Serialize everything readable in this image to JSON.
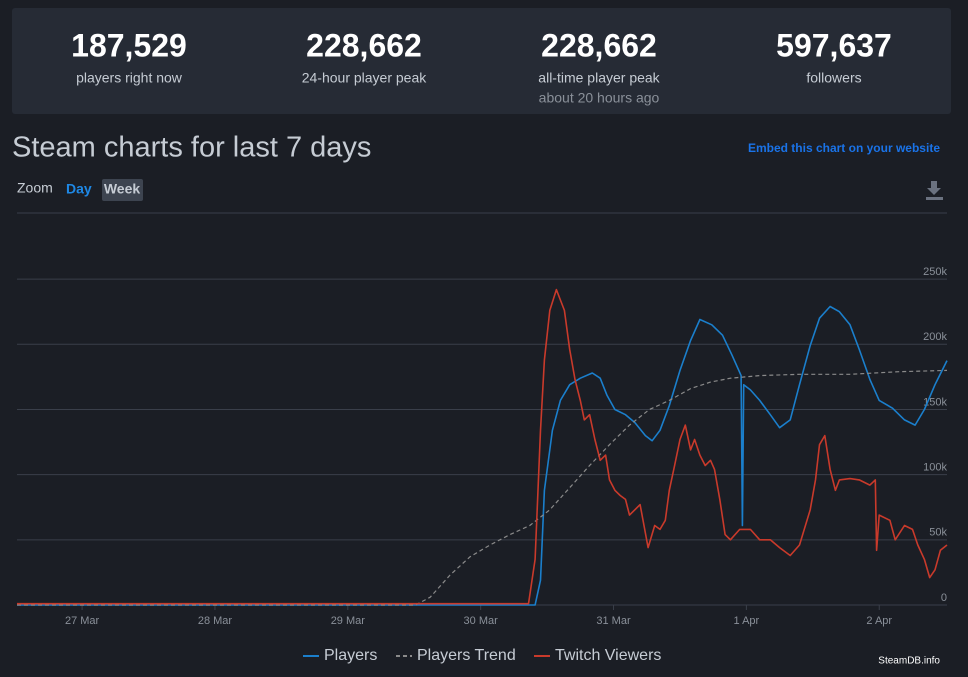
{
  "stats": [
    {
      "value": "187,529",
      "label": "players right now"
    },
    {
      "value": "228,662",
      "label": "24-hour player peak"
    },
    {
      "value": "228,662",
      "label": "all-time player peak",
      "note": "about 20 hours ago"
    },
    {
      "value": "597,637",
      "label": "followers"
    }
  ],
  "chart_data": {
    "type": "line",
    "title": "Steam charts for last 7 days",
    "embed_link": "Embed this chart on your website",
    "zoom_label": "Zoom",
    "zoom_options": [
      "Day",
      "Week"
    ],
    "credit": "SteamDB.info",
    "xlim": [
      26.51,
      33.51
    ],
    "xticks": [
      {
        "value": 27,
        "label": "27 Mar"
      },
      {
        "value": 28,
        "label": "28 Mar"
      },
      {
        "value": 29,
        "label": "29 Mar"
      },
      {
        "value": 30,
        "label": "30 Mar"
      },
      {
        "value": 31,
        "label": "31 Mar"
      },
      {
        "value": 32,
        "label": "1 Apr"
      },
      {
        "value": 33,
        "label": "2 Apr"
      }
    ],
    "ylim": [
      0,
      290000
    ],
    "yticks": [
      0,
      {
        "value": 50000,
        "label": "50k"
      },
      {
        "value": 100000,
        "label": "100k"
      },
      {
        "value": 150000,
        "label": "150k"
      },
      {
        "value": 200000,
        "label": "200k"
      },
      {
        "value": 250000,
        "label": "250k"
      }
    ],
    "grid": true,
    "series": [
      {
        "name": "Players",
        "color": "#1b7fcc",
        "line_style": "solid",
        "x": [
          26.51,
          30.41,
          30.45,
          30.48,
          30.54,
          30.6,
          30.67,
          30.75,
          30.84,
          30.9,
          30.95,
          31.01,
          31.09,
          31.16,
          31.24,
          31.29,
          31.35,
          31.42,
          31.5,
          31.58,
          31.65,
          31.74,
          31.82,
          31.89,
          31.96,
          31.97,
          31.98,
          32.03,
          32.1,
          32.18,
          32.25,
          32.33,
          32.4,
          32.48,
          32.55,
          32.63,
          32.7,
          32.78,
          32.85,
          32.93,
          33.0,
          33.1,
          33.19,
          33.27,
          33.34,
          33.42,
          33.51
        ],
        "values": [
          0,
          0,
          19000,
          88000,
          134000,
          157000,
          169000,
          174000,
          178000,
          174000,
          161000,
          150000,
          146000,
          140000,
          130000,
          126000,
          134000,
          153000,
          180000,
          203000,
          219000,
          215000,
          207000,
          192000,
          176000,
          61000,
          169000,
          165000,
          157000,
          146000,
          136000,
          142000,
          169000,
          199000,
          220000,
          229000,
          225000,
          215000,
          196000,
          173000,
          157000,
          151000,
          142000,
          138000,
          150000,
          169000,
          187529
        ]
      },
      {
        "name": "Players Trend",
        "color": "#8a8a8a",
        "line_style": "dashed",
        "x": [
          26.51,
          29.51,
          29.62,
          29.77,
          29.92,
          30.07,
          30.22,
          30.37,
          30.52,
          30.67,
          30.82,
          30.97,
          31.12,
          31.27,
          31.42,
          31.58,
          31.73,
          31.88,
          32.1,
          32.4,
          32.78,
          33.15,
          33.51
        ],
        "values": [
          0,
          0,
          6000,
          23000,
          37000,
          46000,
          54000,
          61000,
          73000,
          90000,
          107000,
          123000,
          138000,
          150000,
          157000,
          166000,
          171000,
          174000,
          176000,
          177000,
          177000,
          179000,
          180000
        ]
      },
      {
        "name": "Twitch Viewers",
        "color": "#c93a2b",
        "line_style": "solid",
        "x": [
          26.51,
          30.36,
          30.41,
          30.45,
          30.48,
          30.52,
          30.57,
          30.6,
          30.63,
          30.67,
          30.71,
          30.75,
          30.78,
          30.82,
          30.86,
          30.9,
          30.94,
          30.97,
          31.01,
          31.05,
          31.09,
          31.12,
          31.2,
          31.26,
          31.31,
          31.35,
          31.39,
          31.42,
          31.46,
          31.5,
          31.54,
          31.58,
          31.61,
          31.65,
          31.69,
          31.73,
          31.76,
          31.8,
          31.84,
          31.88,
          31.95,
          32.03,
          32.1,
          32.18,
          32.25,
          32.33,
          32.4,
          32.48,
          32.52,
          32.55,
          32.59,
          32.63,
          32.67,
          32.7,
          32.78,
          32.85,
          32.93,
          32.97,
          32.98,
          33.0,
          33.08,
          33.12,
          33.19,
          33.25,
          33.29,
          33.34,
          33.38,
          33.42,
          33.46,
          33.51
        ],
        "values": [
          1000,
          1000,
          35000,
          134000,
          188000,
          226000,
          242000,
          234000,
          226000,
          196000,
          173000,
          157000,
          142000,
          146000,
          127000,
          111000,
          115000,
          96000,
          88000,
          84000,
          81000,
          69000,
          77000,
          44000,
          61000,
          58000,
          65000,
          88000,
          107000,
          127000,
          138000,
          119000,
          127000,
          115000,
          107000,
          111000,
          104000,
          81000,
          54000,
          50000,
          58000,
          58000,
          50000,
          50000,
          44000,
          38000,
          46000,
          73000,
          96000,
          123000,
          130000,
          104000,
          88000,
          96000,
          97000,
          96000,
          92000,
          96000,
          42000,
          69000,
          65000,
          50000,
          61000,
          58000,
          46000,
          35000,
          21000,
          27000,
          42000,
          46000
        ]
      }
    ]
  }
}
